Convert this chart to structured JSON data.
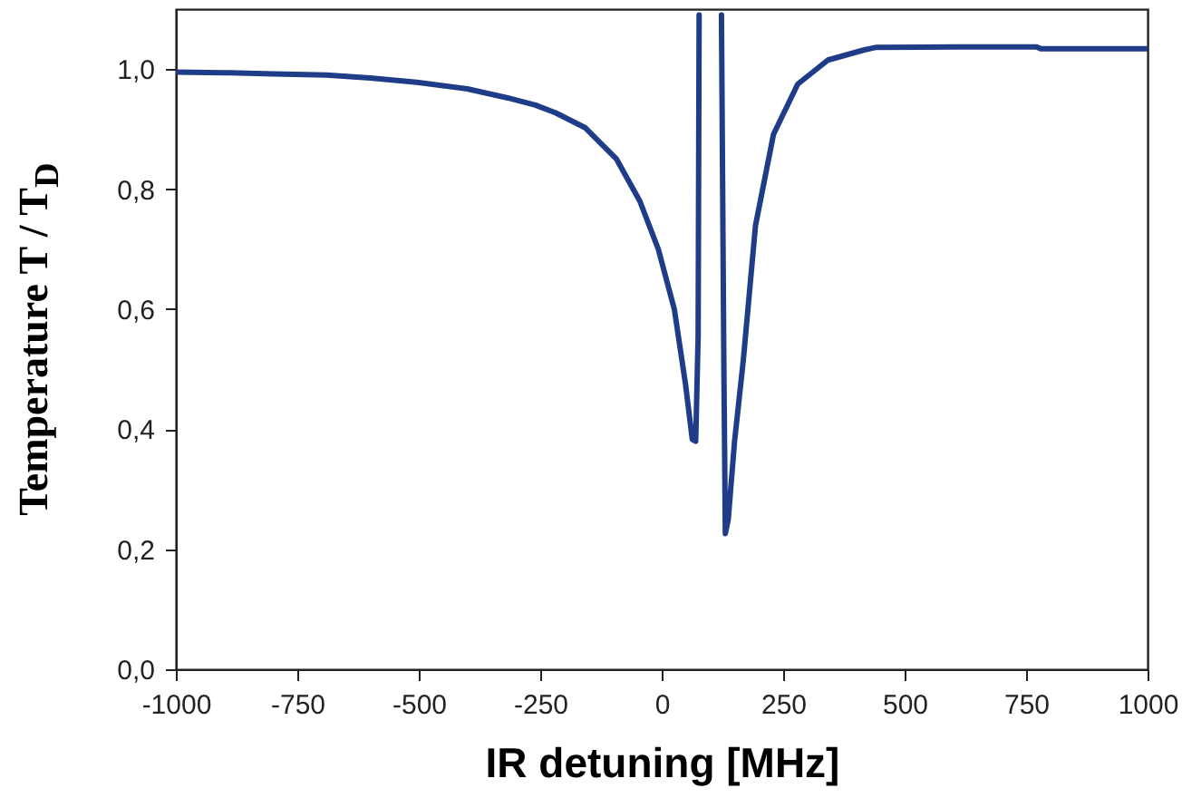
{
  "chart_data": {
    "type": "line",
    "xlabel": "IR detuning [MHz]",
    "ylabel": "Temperature T / T$_{D}$",
    "x": [
      -1000,
      -900,
      -800,
      -690,
      -600,
      -504,
      -400,
      -317,
      -260,
      -218,
      -157,
      -93,
      -45,
      -7,
      26,
      49,
      63,
      70,
      75,
      77,
      100,
      123,
      128,
      131,
      137,
      150,
      168,
      193,
      230,
      280,
      342,
      417,
      440,
      600,
      772,
      780,
      1000
    ],
    "series": [
      {
        "color": "#1f3c88",
        "values": [
          0.995,
          0.994,
          0.992,
          0.99,
          0.985,
          0.978,
          0.967,
          0.952,
          0.94,
          0.927,
          0.902,
          0.85,
          0.78,
          0.7,
          0.6,
          0.475,
          0.383,
          0.38,
          0.555,
          1.09,
          null,
          1.09,
          0.5,
          0.226,
          0.25,
          0.38,
          0.515,
          0.739,
          0.891,
          0.975,
          1.015,
          1.032,
          1.036,
          1.037,
          1.037,
          1.034,
          1.034
        ]
      }
    ],
    "xlim": [
      -1000,
      1000
    ],
    "xticks": [
      -1000,
      -750,
      -500,
      -250,
      0,
      250,
      500,
      750,
      1000
    ],
    "ylim": [
      0,
      1.1
    ],
    "yticks": [
      {
        "value": 0,
        "label": "0,0"
      },
      {
        "value": 0.2,
        "label": "0,2"
      },
      {
        "value": 0.4,
        "label": "0,4"
      },
      {
        "value": 0.6,
        "label": "0,6"
      },
      {
        "value": 0.8,
        "label": "0,8"
      },
      {
        "value": 1.0,
        "label": "1,0"
      }
    ],
    "grid": false,
    "marker": "none",
    "line_style": "solid"
  }
}
